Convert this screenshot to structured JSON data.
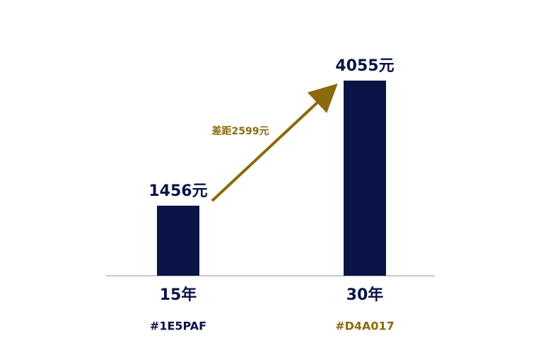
{
  "chart_data": {
    "type": "bar",
    "categories": [
      "15年",
      "30年"
    ],
    "sublabels": [
      "#1E5PAF",
      "#D4A017"
    ],
    "values": [
      1456,
      4055
    ],
    "value_labels": [
      "1456元",
      "4055元"
    ],
    "color": "#0b1446",
    "annotation": "差距2599元",
    "annotation_color": "#8a6a0c"
  }
}
